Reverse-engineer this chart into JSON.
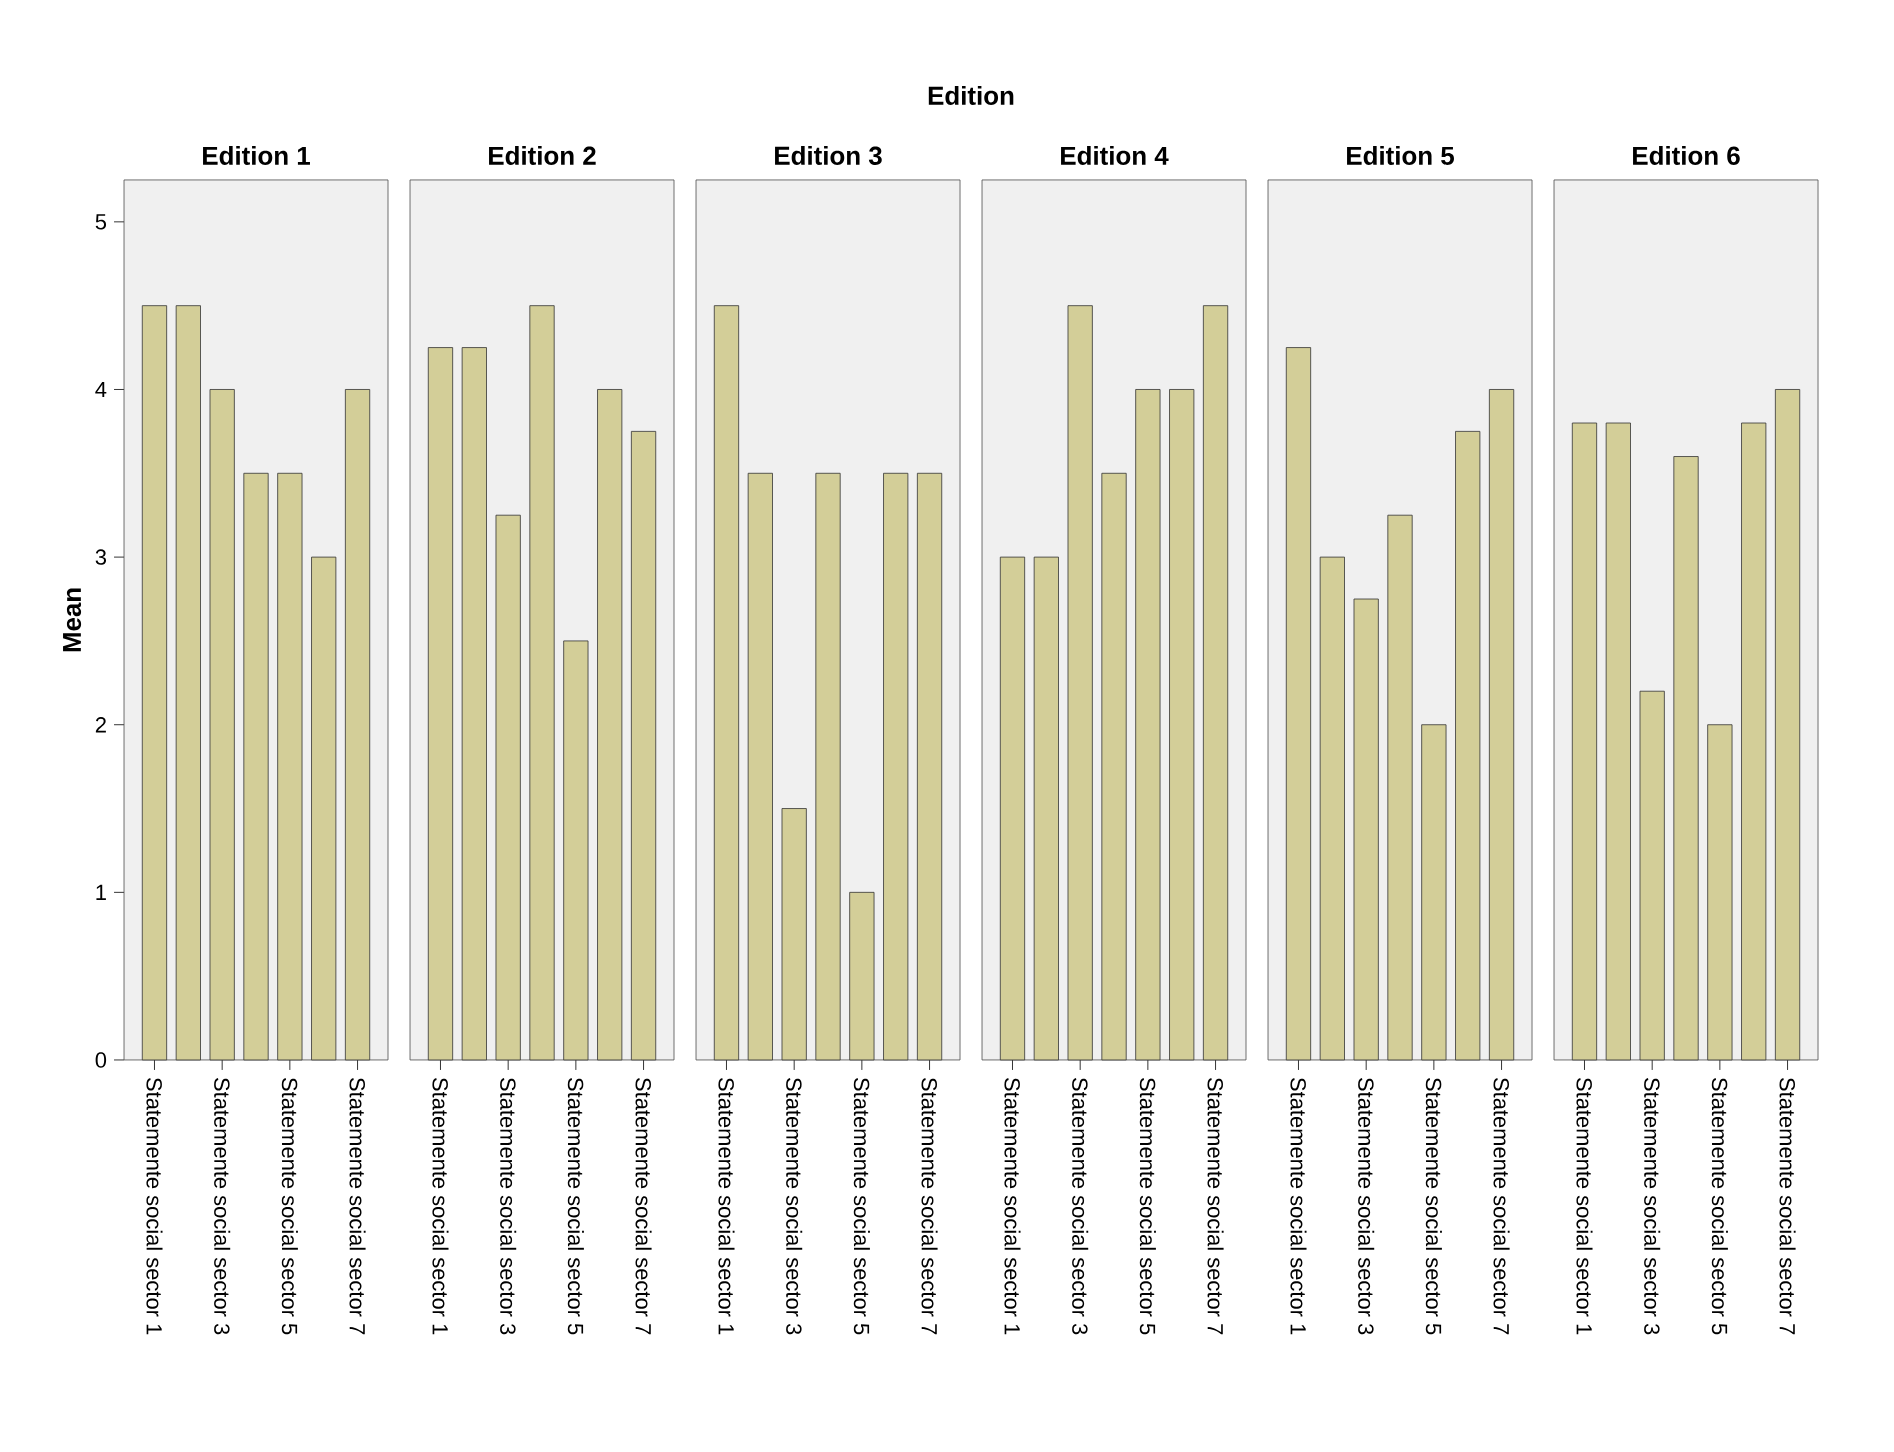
{
  "chart_data": [
    {
      "type": "bar",
      "title": "Edition 1",
      "ylabel": "Mean",
      "annotations": [
        "Edition"
      ],
      "categories": [
        "Statemente social sector 1",
        null,
        "Statemente social sector 3",
        null,
        "Statemente social sector 5",
        null,
        "Statemente social sector 7"
      ],
      "values": [
        4.5,
        4.5,
        4.0,
        3.5,
        3.5,
        3.0,
        4.0
      ],
      "color": "#d3ce98",
      "ylim": [
        0,
        5.25
      ],
      "yticks": [
        0,
        1,
        2,
        3,
        4,
        5
      ]
    },
    {
      "type": "bar",
      "title": "Edition 2",
      "tick_labels": "x",
      "categories": [
        "Statemente social sector 1",
        null,
        "Statemente social sector 3",
        null,
        "Statemente social sector 5",
        null,
        "Statemente social sector 7"
      ],
      "values": [
        4.25,
        4.25,
        3.25,
        4.5,
        2.5,
        4.0,
        3.75
      ],
      "color": "#d3ce98",
      "ylim": [
        0,
        5.25
      ]
    },
    {
      "type": "bar",
      "title": "Edition 3",
      "tick_labels": "x",
      "categories": [
        "Statemente social sector 1",
        null,
        "Statemente social sector 3",
        null,
        "Statemente social sector 5",
        null,
        "Statemente social sector 7"
      ],
      "values": [
        4.5,
        3.5,
        1.5,
        3.5,
        1.0,
        3.5,
        3.5
      ],
      "color": "#d3ce98",
      "ylim": [
        0,
        5.25
      ]
    },
    {
      "type": "bar",
      "title": "Edition 4",
      "tick_labels": "x",
      "categories": [
        "Statemente social sector 1",
        null,
        "Statemente social sector 3",
        null,
        "Statemente social sector 5",
        null,
        "Statemente social sector 7"
      ],
      "values": [
        3.0,
        3.0,
        4.5,
        3.5,
        4.0,
        4.0,
        4.5
      ],
      "color": "#d3ce98",
      "ylim": [
        0,
        5.25
      ]
    },
    {
      "type": "bar",
      "title": "Edition 5",
      "tick_labels": "x",
      "categories": [
        "Statemente social sector 1",
        null,
        "Statemente social sector 3",
        null,
        "Statemente social sector 5",
        null,
        "Statemente social sector 7"
      ],
      "values": [
        4.25,
        3.0,
        2.75,
        3.25,
        2.0,
        3.75,
        4.0
      ],
      "color": "#d3ce98",
      "ylim": [
        0,
        5.25
      ]
    },
    {
      "type": "bar",
      "title": "Edition 6",
      "tick_labels": "x",
      "categories": [
        "Statemente social sector 1",
        null,
        "Statemente social sector 3",
        null,
        "Statemente social sector 5",
        null,
        "Statemente social sector 7"
      ],
      "values": [
        3.8,
        3.8,
        2.2,
        3.6,
        2.0,
        3.8,
        4.0
      ],
      "color": "#d3ce98",
      "ylim": [
        0,
        5.25
      ]
    }
  ]
}
